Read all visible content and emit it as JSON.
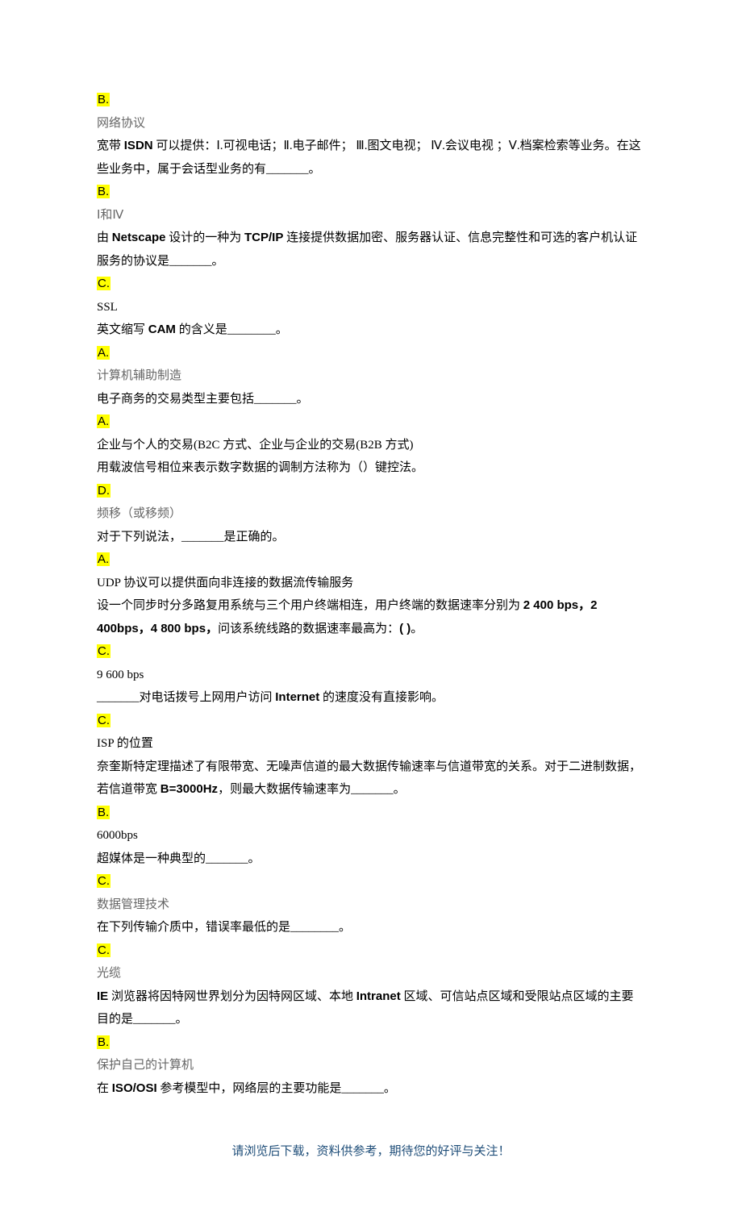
{
  "items": [
    {
      "question_pre": "",
      "question_post": "",
      "letter": "B.",
      "answer": "网络协议",
      "has_question_before": false
    },
    {
      "question_pre": "宽带 ",
      "question_bold": "ISDN",
      "question_post": " 可以提供：Ⅰ.可视电话；Ⅱ.电子邮件； Ⅲ.图文电视； Ⅳ.会议电视 ；Ⅴ.档案检索等业务。在这些业务中，属于会话型业务的有_______。",
      "letter": "B.",
      "answer": "Ⅰ和Ⅳ"
    },
    {
      "question_pre": "由 ",
      "question_bold": "Netscape",
      "question_mid": " 设计的一种为 ",
      "question_bold2": "TCP/IP",
      "question_post": " 连接提供数据加密、服务器认证、信息完整性和可选的客户机认证服务的协议是_______。",
      "letter": "C.",
      "answer": "SSL",
      "answer_dark": true
    },
    {
      "question_pre": "英文缩写 ",
      "question_bold": "CAM",
      "question_post": " 的含义是________。",
      "letter": "A.",
      "answer": "计算机辅助制造"
    },
    {
      "question_pre": "电子商务的交易类型主要包括_______。",
      "letter": "A.",
      "answer": "企业与个人的交易(B2C 方式、企业与企业的交易(B2B 方式)",
      "answer_dark": true
    },
    {
      "question_pre": "用载波信号相位来表示数字数据的调制方法称为（）键控法。",
      "letter": "D.",
      "answer": "频移（或移频）"
    },
    {
      "question_pre": "对于下列说法，_______是正确的。",
      "letter": "A.",
      "answer": "UDP 协议可以提供面向非连接的数据流传输服务",
      "answer_dark": true
    },
    {
      "question_pre": "设一个同步时分多路复用系统与三个用户终端相连，用户终端的数据速率分别为 ",
      "question_bold": "2 400  bps，2 400bps，4 800  bps，",
      "question_post": "问该系统线路的数据速率最高为：",
      "question_bold2": "(  )",
      "question_end": "。",
      "letter": "C.",
      "answer": "9  600  bps",
      "answer_dark": true
    },
    {
      "question_pre": "_______对电话拨号上网用户访问 ",
      "question_bold": "Internet",
      "question_post": " 的速度没有直接影响。",
      "letter": "C.",
      "answer": "ISP 的位置",
      "answer_dark": true
    },
    {
      "question_pre": "奈奎斯特定理描述了有限带宽、无噪声信道的最大数据传输速率与信道带宽的关系。对于二进制数据，若信道带宽 ",
      "question_bold": "B=3000Hz",
      "question_post": "，则最大数据传输速率为_______。",
      "letter": "B.",
      "answer": "6000bps",
      "answer_dark": true
    },
    {
      "question_pre": "超媒体是一种典型的_______。",
      "letter": "C.",
      "answer": "数据管理技术"
    },
    {
      "question_pre": "在下列传输介质中，错误率最低的是________。",
      "letter": "C.",
      "answer": "光缆"
    },
    {
      "question_pre": "",
      "question_bold": "IE",
      "question_mid": " 浏览器将因特网世界划分为因特网区域、本地 ",
      "question_bold2": "Intranet",
      "question_post": " 区域、可信站点区域和受限站点区域的主要目的是_______。",
      "letter": "B.",
      "answer": "保护自己的计算机"
    },
    {
      "question_pre": "在 ",
      "question_bold": "ISO/OSI",
      "question_post": " 参考模型中，网络层的主要功能是_______。",
      "no_answer": true
    }
  ],
  "footer": "请浏览后下载，资料供参考，期待您的好评与关注！",
  "colors": {
    "highlight": "#ffff00",
    "text": "#000000",
    "gray": "#666666",
    "footer": "#1f4e79"
  }
}
